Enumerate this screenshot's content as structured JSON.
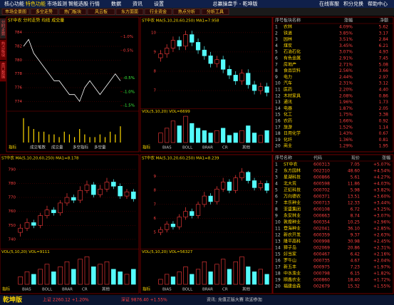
{
  "menu": [
    "核心功能",
    "特色功能",
    "市场监测",
    "智能选股",
    "行情",
    "数据",
    "资讯",
    "设置"
  ],
  "app_title": "总赢操盘手 - 乾坤版",
  "top_links": [
    "在线客服",
    "积分兑换",
    "帮助中心"
  ],
  "toolbar": [
    "市场全景图",
    "多空走势",
    "热门板块",
    "风云板",
    "东方面面",
    "行业资金",
    "热点分析",
    "分析工具"
  ],
  "side_tabs": [
    "分时走势",
    "热点板块",
    "盘口数据"
  ],
  "intraday": {
    "title": "ST中农 分时走势 均线 成交量",
    "price": [
      782,
      783,
      781,
      780,
      779,
      778,
      777,
      777,
      776,
      775,
      775,
      774,
      776,
      777,
      776,
      775,
      776,
      777,
      778,
      777
    ],
    "ylim": [
      773,
      785
    ],
    "yticks": [
      774,
      776,
      778,
      780,
      782,
      784
    ],
    "y2lim": [
      -1.6,
      1.4
    ],
    "y2ticks": [
      {
        "value": 1,
        "label": "1.0%"
      },
      {
        "value": 0.5,
        "label": "0.5%"
      },
      {
        "value": -0.5,
        "label": "-0.5%"
      },
      {
        "value": -1,
        "label": "-1.0%"
      },
      {
        "value": -1.5,
        "label": "-1.5%"
      }
    ],
    "volume": [
      9,
      6,
      5,
      4,
      4,
      3,
      3,
      2,
      4,
      3,
      2,
      5,
      3,
      2,
      2,
      3,
      2,
      4,
      3,
      6
    ],
    "vlim": [
      0,
      10
    ],
    "tabs": [
      "指标",
      "成交笔数",
      "成交量",
      "多空指标",
      "多空量"
    ]
  },
  "klines": [
    {
      "title": "ST中农 MA(5,10,20,60,250) MA1=7.958",
      "vol_title": "VOL(5,10,20) VOL=6699",
      "open": [
        8.7,
        8.9,
        9.2,
        9.6,
        9.3,
        9.9,
        9.5,
        9.1,
        8.8,
        8.4,
        8.6,
        8.1,
        7.8,
        7.5,
        7.9,
        7.3,
        7.0,
        7.2
      ],
      "high": [
        9.1,
        9.4,
        9.8,
        9.8,
        10.1,
        10.1,
        9.7,
        9.3,
        9.0,
        8.8,
        8.8,
        8.3,
        8.0,
        8.1,
        8.1,
        7.5,
        7.4,
        7.4
      ],
      "low": [
        8.5,
        8.7,
        9.0,
        9.1,
        9.1,
        9.3,
        8.9,
        8.6,
        8.2,
        8.2,
        7.9,
        7.6,
        7.3,
        7.3,
        7.1,
        6.8,
        6.8,
        6.7
      ],
      "close": [
        8.9,
        9.2,
        9.6,
        9.3,
        9.9,
        9.5,
        9.1,
        8.8,
        8.4,
        8.6,
        8.1,
        7.8,
        7.5,
        7.9,
        7.3,
        7.0,
        7.2,
        6.9
      ],
      "ylim": [
        6.2,
        10.4
      ],
      "yticks": [
        7,
        8,
        9,
        10
      ],
      "volume": [
        4,
        6,
        9,
        7,
        11,
        8,
        6,
        5,
        4,
        5,
        6,
        3,
        4,
        5,
        7,
        4,
        3,
        5
      ],
      "vlim": [
        0,
        12
      ]
    },
    {
      "title": "ST中农 MA(5,10,20,60,250) MA1=8.178",
      "vol_title": "VOL(5,10,20) VOL=9111",
      "open": [
        745,
        748,
        752,
        750,
        757,
        761,
        759,
        766,
        770,
        768,
        775,
        779,
        772,
        776,
        781,
        778,
        771,
        774
      ],
      "high": [
        751,
        755,
        754,
        759,
        764,
        763,
        768,
        773,
        772,
        778,
        782,
        781,
        779,
        784,
        783,
        780,
        776,
        776
      ],
      "low": [
        742,
        746,
        748,
        748,
        755,
        757,
        757,
        764,
        766,
        766,
        773,
        770,
        770,
        774,
        776,
        769,
        769,
        767
      ],
      "close": [
        748,
        752,
        750,
        757,
        761,
        759,
        766,
        770,
        768,
        775,
        779,
        772,
        776,
        781,
        778,
        771,
        774,
        769
      ],
      "ylim": [
        735,
        795
      ],
      "yticks": [
        740,
        750,
        760,
        770,
        780,
        790
      ],
      "volume": [
        3,
        5,
        4,
        6,
        8,
        5,
        7,
        9,
        6,
        10,
        11,
        7,
        8,
        9,
        6,
        5,
        4,
        6
      ],
      "vlim": [
        0,
        12
      ]
    },
    {
      "title": "ST中农 MA(5,10,20,60,250) MA1=8.239",
      "vol_title": "VOL(5,10,20) VOL=56327",
      "open": [
        5.0,
        5.2,
        5.6,
        5.4,
        6.1,
        6.5,
        6.2,
        7.0,
        7.6,
        7.2,
        8.1,
        8.6,
        8.0,
        8.9,
        9.3,
        8.7,
        8.2,
        8.5
      ],
      "high": [
        5.4,
        5.8,
        5.8,
        6.3,
        6.8,
        6.7,
        7.2,
        7.9,
        7.8,
        8.3,
        8.9,
        8.8,
        9.1,
        9.6,
        9.4,
        8.9,
        8.7,
        8.7
      ],
      "low": [
        4.8,
        5.0,
        5.2,
        5.2,
        5.9,
        6.0,
        6.0,
        6.8,
        7.0,
        7.0,
        7.9,
        7.8,
        7.8,
        8.7,
        8.5,
        8.0,
        8.0,
        7.8
      ],
      "close": [
        5.2,
        5.6,
        5.4,
        6.1,
        6.5,
        6.2,
        7.0,
        7.6,
        7.2,
        8.1,
        8.6,
        8.0,
        8.9,
        9.3,
        8.7,
        8.2,
        8.5,
        8.0
      ],
      "ylim": [
        4,
        10
      ],
      "yticks": [
        5,
        6,
        7,
        8,
        9
      ],
      "volume": [
        2,
        4,
        3,
        5,
        7,
        4,
        6,
        9,
        5,
        8,
        10,
        6,
        9,
        11,
        7,
        5,
        6,
        4
      ],
      "vlim": [
        0,
        12
      ]
    }
  ],
  "kline_tabs": [
    "指标",
    "BIAS",
    "BOLL",
    "BRAR",
    "CR",
    "其他"
  ],
  "sector_table": {
    "header": [
      "序号",
      "板块名称",
      "涨幅",
      "净额"
    ],
    "rows": [
      [
        "1",
        "农林",
        "4.09%",
        "5.62"
      ],
      [
        "2",
        "铁道",
        "3.85%",
        "3.17"
      ],
      [
        "3",
        "园林",
        "3.51%",
        "2.84"
      ],
      [
        "4",
        "煤炭",
        "3.45%",
        "6.21"
      ],
      [
        "5",
        "石油石化",
        "3.07%",
        "4.93"
      ],
      [
        "6",
        "有色金属",
        "2.91%",
        "7.45"
      ],
      [
        "7",
        "房地产",
        "2.71%",
        "5.08"
      ],
      [
        "8",
        "食品饮料",
        "2.56%",
        "3.66"
      ],
      [
        "9",
        "电力",
        "2.44%",
        "2.97"
      ],
      [
        "10",
        "汽车",
        "2.31%",
        "3.12"
      ],
      [
        "11",
        "医药",
        "2.20%",
        "4.40"
      ],
      [
        "12",
        "木材家具",
        "2.08%",
        "0.86"
      ],
      [
        "13",
        "通讯",
        "1.96%",
        "1.73"
      ],
      [
        "14",
        "电器",
        "1.87%",
        "2.05"
      ],
      [
        "15",
        "化工",
        "1.75%",
        "3.38"
      ],
      [
        "16",
        "农药",
        "1.66%",
        "0.92"
      ],
      [
        "17",
        "旅游",
        "1.52%",
        "1.14"
      ],
      [
        "18",
        "日用化学",
        "1.43%",
        "0.67"
      ],
      [
        "19",
        "化纤",
        "1.36%",
        "0.81"
      ],
      [
        "20",
        "商业",
        "1.29%",
        "1.95"
      ]
    ]
  },
  "stock_table": {
    "header": [
      "序号",
      "名称",
      "代码",
      "现价",
      "涨幅"
    ],
    "rows": [
      [
        "1",
        "ST中农",
        "600313",
        "7.05",
        "+5.07%"
      ],
      [
        "2",
        "东方园林",
        "002310",
        "48.60",
        "+4.54%"
      ],
      [
        "3",
        "星湖科技",
        "600866",
        "5.61",
        "+4.27%"
      ],
      [
        "4",
        "北大荒",
        "600598",
        "11.86",
        "+4.03%"
      ],
      [
        "5",
        "正虹科技",
        "000702",
        "5.98",
        "+3.82%"
      ],
      [
        "6",
        "万向德农",
        "600371",
        "13.51",
        "+3.60%"
      ],
      [
        "7",
        "丰乐种业",
        "000713",
        "12.33",
        "+3.44%"
      ],
      [
        "8",
        "亚盛集团",
        "600108",
        "6.72",
        "+3.25%"
      ],
      [
        "9",
        "永安林业",
        "000663",
        "8.74",
        "+3.07%"
      ],
      [
        "10",
        "敦煌种业",
        "600354",
        "10.25",
        "+2.96%"
      ],
      [
        "11",
        "登海种业",
        "002041",
        "36.10",
        "+2.85%"
      ],
      [
        "12",
        "新农开发",
        "600359",
        "9.37",
        "+2.63%"
      ],
      [
        "13",
        "隆平高科",
        "000998",
        "30.98",
        "+2.45%"
      ],
      [
        "14",
        "獐子岛",
        "002069",
        "20.86",
        "+2.31%"
      ],
      [
        "15",
        "好当家",
        "600467",
        "6.42",
        "+2.16%"
      ],
      [
        "16",
        "罗牛山",
        "000735",
        "4.67",
        "+2.04%"
      ],
      [
        "17",
        "新五丰",
        "600975",
        "7.23",
        "+1.97%"
      ],
      [
        "18",
        "中水渔业",
        "000798",
        "6.15",
        "+1.82%"
      ],
      [
        "19",
        "顺鑫农业",
        "000860",
        "18.40",
        "+1.72%"
      ],
      [
        "20",
        "福建金森",
        "002679",
        "15.32",
        "+1.55%"
      ]
    ]
  },
  "status": [
    "乾坤版",
    "上证 2260.12 +1.20%",
    "深证 9876.40 +1.55%",
    "资讯: 充值正版大赛 欢迎参加"
  ]
}
